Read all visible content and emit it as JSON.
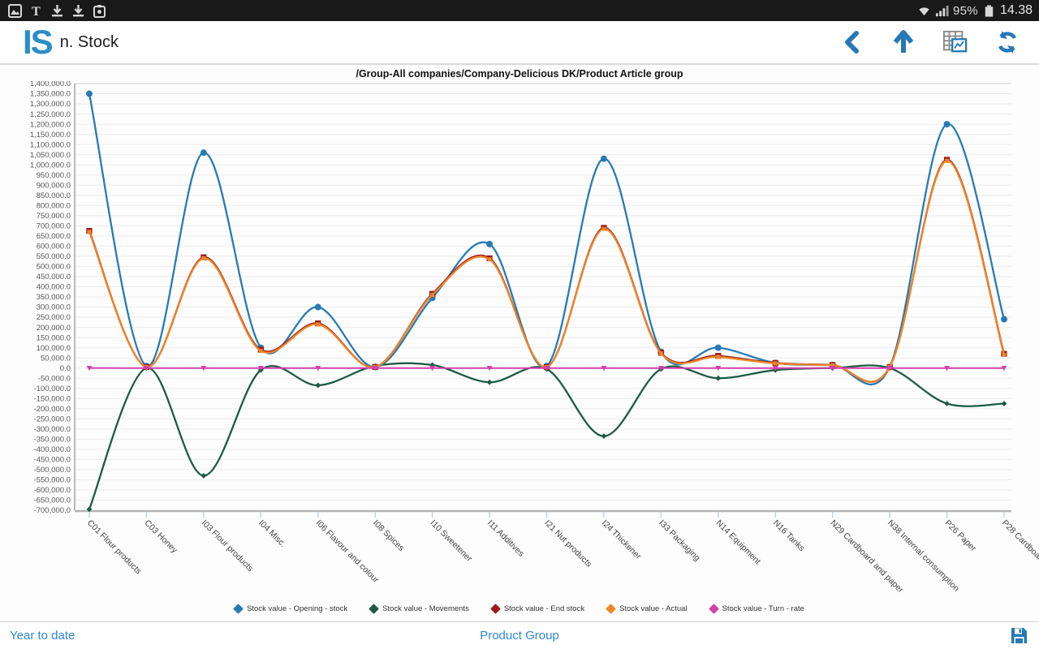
{
  "status_bar": {
    "left_icons": [
      "gallery-icon",
      "nyt-icon",
      "download-icon",
      "download-icon",
      "screenshot-icon"
    ],
    "nyt_glyph": "T",
    "battery_pct": "95%",
    "time": "14.38"
  },
  "header": {
    "logo": "IS",
    "title": "n. Stock",
    "actions": [
      "back-icon",
      "up-arrow-icon",
      "report-table-icon",
      "refresh-icon"
    ],
    "accent_color": "#2779b5"
  },
  "chart_data": {
    "type": "line",
    "title": "/Group-All companies/Company-Delicious DK/Product Article group",
    "categories": [
      "C01 Flour products",
      "C03 Honey",
      "I03 Flour products",
      "I04 Misc.",
      "I06 Flavour and colour",
      "I08 Spices",
      "I10 Sweetener",
      "I11 Additives",
      "I21 Nut products",
      "I24 Thickener",
      "I33 Packaging",
      "N14 Equipment",
      "N16 Tanks",
      "N29 Cardboard and paper",
      "N38 Internal consumption",
      "P26 Paper",
      "P28 Cardboard"
    ],
    "series": [
      {
        "name": "Stock value - Opening - stock",
        "color": "#277bb4",
        "marker": "circle",
        "values": [
          1350000,
          10000,
          1060000,
          100000,
          300000,
          5000,
          345000,
          610000,
          10000,
          1030000,
          80000,
          100000,
          25000,
          15000,
          5000,
          1200000,
          240000
        ]
      },
      {
        "name": "Stock value - Movements",
        "color": "#1d5b44",
        "marker": "diamond",
        "values": [
          -695000,
          0,
          -530000,
          -10000,
          -85000,
          10000,
          15000,
          -70000,
          -5000,
          -335000,
          -5000,
          -50000,
          -10000,
          0,
          0,
          -175000,
          -175000
        ]
      },
      {
        "name": "Stock value - End stock",
        "color": "#9b1b1b",
        "marker": "square",
        "values": [
          675000,
          5000,
          545000,
          90000,
          220000,
          5000,
          365000,
          540000,
          5000,
          690000,
          75000,
          60000,
          25000,
          15000,
          5000,
          1025000,
          70000
        ]
      },
      {
        "name": "Stock value - Actual",
        "color": "#ee8527",
        "marker": "square",
        "values": [
          670000,
          5000,
          540000,
          85000,
          215000,
          5000,
          360000,
          535000,
          5000,
          685000,
          72000,
          55000,
          23000,
          14000,
          5000,
          1020000,
          65000
        ]
      },
      {
        "name": "Stock value - Turn - rate",
        "color": "#d33fae",
        "marker": "triangle",
        "values": [
          0,
          0,
          0,
          0,
          0,
          0,
          0,
          0,
          0,
          0,
          0,
          0,
          0,
          0,
          0,
          0,
          0
        ]
      }
    ],
    "ylim": [
      -700000,
      1400000
    ],
    "ytick_step": 50000,
    "grid": true,
    "legend_position": "bottom",
    "xlabel": "",
    "ylabel": ""
  },
  "footer": {
    "left": "Year to date",
    "center": "Product Group",
    "save_icon": "save-icon"
  }
}
